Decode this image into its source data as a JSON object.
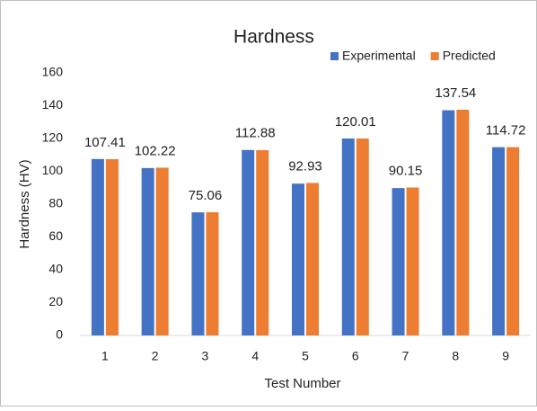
{
  "chart_data": {
    "type": "bar",
    "title": "Hardness",
    "x_label": "Test Number",
    "y_label": "Hardness (HV)",
    "categories": [
      "1",
      "2",
      "3",
      "4",
      "5",
      "6",
      "7",
      "8",
      "9"
    ],
    "series": [
      {
        "name": "Experimental",
        "color": "#4472c4",
        "values": [
          107.5,
          102,
          75,
          113,
          92.5,
          120,
          89.8,
          137.2,
          114.7
        ]
      },
      {
        "name": "Predicted",
        "color": "#ed7d31",
        "values": [
          107.41,
          102.22,
          75.06,
          112.88,
          92.93,
          120.01,
          90.15,
          137.54,
          114.72
        ],
        "data_labels": true
      }
    ],
    "ylim": [
      0,
      160
    ],
    "yticks": [
      0,
      20,
      40,
      60,
      80,
      100,
      120,
      140,
      160
    ],
    "grid": false,
    "legend": "top-right"
  }
}
